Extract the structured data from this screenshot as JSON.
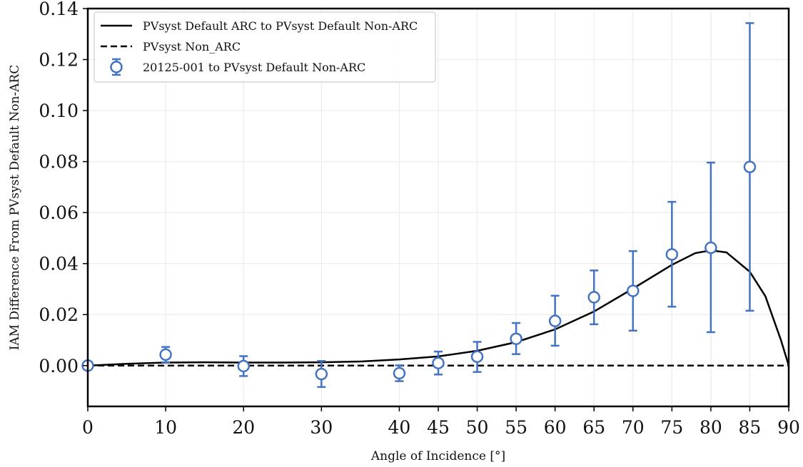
{
  "chart_data": {
    "type": "line",
    "xlabel": "Angle of Incidence [°]",
    "ylabel": "IAM Difference From PVsyst Default Non-ARC",
    "xlim": [
      0,
      90
    ],
    "ylim": [
      -0.016,
      0.14
    ],
    "xticks": [
      0,
      10,
      20,
      30,
      40,
      45,
      50,
      55,
      60,
      65,
      70,
      75,
      80,
      85,
      90
    ],
    "yticks": [
      0.0,
      0.02,
      0.04,
      0.06,
      0.08,
      0.1,
      0.12,
      0.14
    ],
    "ytick_labels": [
      "0.00",
      "0.02",
      "0.04",
      "0.06",
      "0.08",
      "0.10",
      "0.12",
      "0.14"
    ],
    "grid": true,
    "legend_position": "top-left",
    "series": [
      {
        "name": "PVsyst Default ARC to PVsyst Default Non-ARC",
        "style": "solid",
        "color": "#000000",
        "x": [
          0,
          5,
          10,
          15,
          20,
          25,
          30,
          35,
          40,
          45,
          50,
          55,
          60,
          65,
          70,
          75,
          78,
          80,
          82,
          85,
          87,
          89,
          90
        ],
        "y": [
          0.0,
          0.0007,
          0.0012,
          0.0013,
          0.0012,
          0.0012,
          0.0013,
          0.0016,
          0.0024,
          0.0036,
          0.0058,
          0.0092,
          0.0142,
          0.0212,
          0.0302,
          0.0395,
          0.0441,
          0.0452,
          0.0444,
          0.0368,
          0.0272,
          0.01,
          0.0
        ]
      },
      {
        "name": "PVsyst Non_ARC",
        "style": "dashed",
        "color": "#000000",
        "x": [
          0,
          90
        ],
        "y": [
          0.0,
          0.0
        ]
      },
      {
        "name": "20125-001 to PVsyst Default Non-ARC",
        "style": "errorbar-markers",
        "color": "#4472C4",
        "x": [
          0,
          10,
          20,
          30,
          40,
          45,
          50,
          55,
          60,
          65,
          70,
          75,
          80,
          85
        ],
        "y": [
          0.0,
          0.0043,
          -0.0002,
          -0.0033,
          -0.003,
          0.001,
          0.0035,
          0.0105,
          0.0175,
          0.0268,
          0.0293,
          0.0436,
          0.0462,
          0.0779
        ],
        "y_low": [
          0.0,
          0.0013,
          -0.0041,
          -0.0084,
          -0.0061,
          -0.0035,
          -0.0025,
          0.0045,
          0.0078,
          0.0162,
          0.0137,
          0.0231,
          0.0131,
          0.0215
        ],
        "y_high": [
          0.0,
          0.0073,
          0.0037,
          0.0018,
          0.0001,
          0.0055,
          0.0093,
          0.0167,
          0.0274,
          0.0373,
          0.0449,
          0.0642,
          0.0796,
          0.1343
        ]
      }
    ]
  }
}
